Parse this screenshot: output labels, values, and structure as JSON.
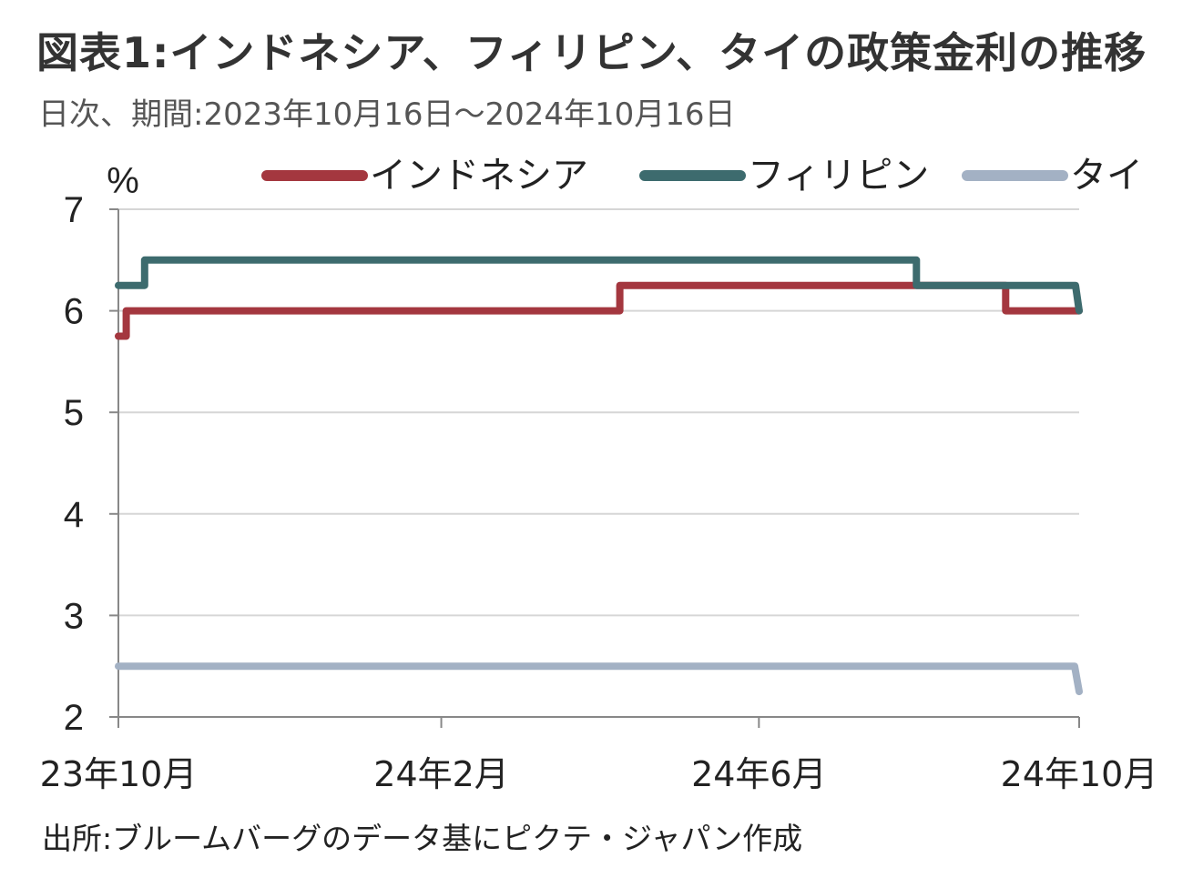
{
  "title": "図表1:インドネシア、フィリピン、タイの政策金利の推移",
  "subtitle": "日次、期間:2023年10月16日～2024年10月16日",
  "source": "出所:ブルームバーグのデータ基にピクテ・ジャパン作成",
  "chart_data": {
    "type": "line",
    "step": true,
    "ylabel": "%",
    "ylim": [
      2,
      7
    ],
    "yticks": [
      "7",
      "6",
      "5",
      "4",
      "3",
      "2"
    ],
    "x_range": [
      "2023-10-16",
      "2024-10-16"
    ],
    "xtick_labels": [
      {
        "date": "2023-10-16",
        "label": "23年10月"
      },
      {
        "date": "2024-02-16",
        "label": "24年2月"
      },
      {
        "date": "2024-06-16",
        "label": "24年6月"
      },
      {
        "date": "2024-10-16",
        "label": "24年10月"
      }
    ],
    "grid": true,
    "legend_position": "top",
    "series": [
      {
        "name": "インドネシア",
        "color": "#a4373f",
        "points": [
          {
            "date": "2023-10-16",
            "value": 5.75
          },
          {
            "date": "2023-10-19",
            "value": 6.0
          },
          {
            "date": "2024-04-24",
            "value": 6.25
          },
          {
            "date": "2024-09-18",
            "value": 6.0
          },
          {
            "date": "2024-10-16",
            "value": 6.0
          }
        ]
      },
      {
        "name": "フィリピン",
        "color": "#3d6b6e",
        "points": [
          {
            "date": "2023-10-16",
            "value": 6.25
          },
          {
            "date": "2023-10-26",
            "value": 6.5
          },
          {
            "date": "2024-08-15",
            "value": 6.25
          },
          {
            "date": "2024-10-16",
            "value": 6.0
          }
        ]
      },
      {
        "name": "タイ",
        "color": "#a3b1c4",
        "points": [
          {
            "date": "2023-10-16",
            "value": 2.5
          },
          {
            "date": "2024-10-16",
            "value": 2.25
          }
        ]
      }
    ]
  }
}
